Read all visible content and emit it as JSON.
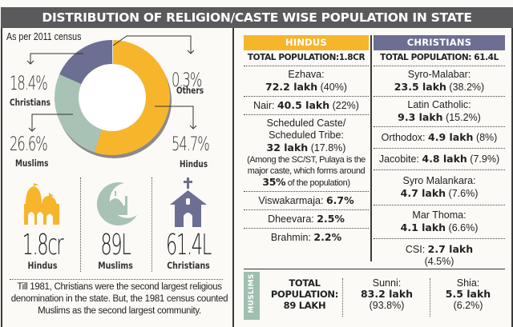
{
  "title": "DISTRIBUTION OF RELIGION/CASTE WISE POPULATION IN STATE",
  "census_note": "As per 2011 census",
  "chart_data": {
    "type": "pie",
    "subtype": "donut",
    "title": "As per 2011 census",
    "slices": [
      {
        "name": "Hindus",
        "value": 54.7,
        "label": "54.7%",
        "color": "#f7b52c"
      },
      {
        "name": "Muslims",
        "value": 26.6,
        "label": "26.6%",
        "color": "#a8c3b6"
      },
      {
        "name": "Christians",
        "value": 18.4,
        "label": "18.4%",
        "color": "#6c6f92"
      },
      {
        "name": "Others",
        "value": 0.3,
        "label": "0.3%",
        "color": "#e8e8e8"
      }
    ]
  },
  "totals": [
    {
      "icon": "temple-icon",
      "value": "1.8cr",
      "label": "Hindus",
      "color": "#f7b52c"
    },
    {
      "icon": "mosque-crescent-icon",
      "value": "89L",
      "label": "Muslims",
      "color": "#a8c3b6"
    },
    {
      "icon": "church-icon",
      "value": "61.4L",
      "label": "Christians",
      "color": "#6c6f92"
    }
  ],
  "footnote": "Till 1981, Christians were the second largest religious denomination in the state. But, the 1981 census counted Muslims as the second largest community.",
  "hindus": {
    "header": "HINDUS",
    "color": "#f7b52c",
    "total": "TOTAL POPULATION:1.8CR",
    "rows": [
      {
        "name": "Ezhava:",
        "value": "72.2 lakh",
        "share": "(40%)",
        "inline": false
      },
      {
        "name": "Nair:",
        "value": "40.5 lakh",
        "share": "(22%)",
        "inline": true
      },
      {
        "name": "Scheduled Caste/ Scheduled Tribe:",
        "value": "32 lakh",
        "share": "(17.8%)",
        "inline": false,
        "note_pre": "(Among the SC/ST, Pulaya is the major caste, which forms around",
        "note_bold": "35%",
        "note_post": "of the population)"
      },
      {
        "name": "Viswakarmaja:",
        "value": "6.7%",
        "share": "",
        "inline": true
      },
      {
        "name": "Dheevara:",
        "value": "2.5%",
        "share": "",
        "inline": true
      },
      {
        "name": "Brahmin:",
        "value": "2.2%",
        "share": "",
        "inline": true
      }
    ]
  },
  "christians": {
    "header": "CHRISTIANS",
    "color": "#6c6f92",
    "total": "TOTAL POPULATION: 61.4L",
    "rows": [
      {
        "name": "Syro-Malabar:",
        "value": "23.5 lakh",
        "share": "(38.2%)",
        "inline": false
      },
      {
        "name": "Latin Catholic:",
        "value": "9.3 lakh",
        "share": "(15.2%)",
        "inline": false
      },
      {
        "name": "Orthodox:",
        "value": "4.9 lakh",
        "share": "(8%)",
        "inline": true
      },
      {
        "name": "Jacobite:",
        "value": "4.8 lakh",
        "share": "(7.9%)",
        "inline": true
      },
      {
        "name": "Syro Malankara:",
        "value": "4.7 lakh",
        "share": "(7.6%)",
        "inline": false
      },
      {
        "name": "Mar Thoma:",
        "value": "4.1 lakh",
        "share": "(6.6%)",
        "inline": false
      },
      {
        "name": "CSI:",
        "value": "2.7 lakh",
        "share": "(4.5%)",
        "inline": "csi"
      }
    ]
  },
  "muslims": {
    "tag": "MUSLIMS",
    "color": "#9fbfb0",
    "total": "TOTAL POPULATION: 89 LAKH",
    "total_lines": [
      "TOTAL",
      "POPULATION:",
      "89 LAKH"
    ],
    "rows": [
      {
        "name": "Sunni:",
        "value": "83.2 lakh",
        "share": "(93.8%)"
      },
      {
        "name": "Shia:",
        "value": "5.5 lakh",
        "share": "(6.2%)"
      }
    ]
  }
}
